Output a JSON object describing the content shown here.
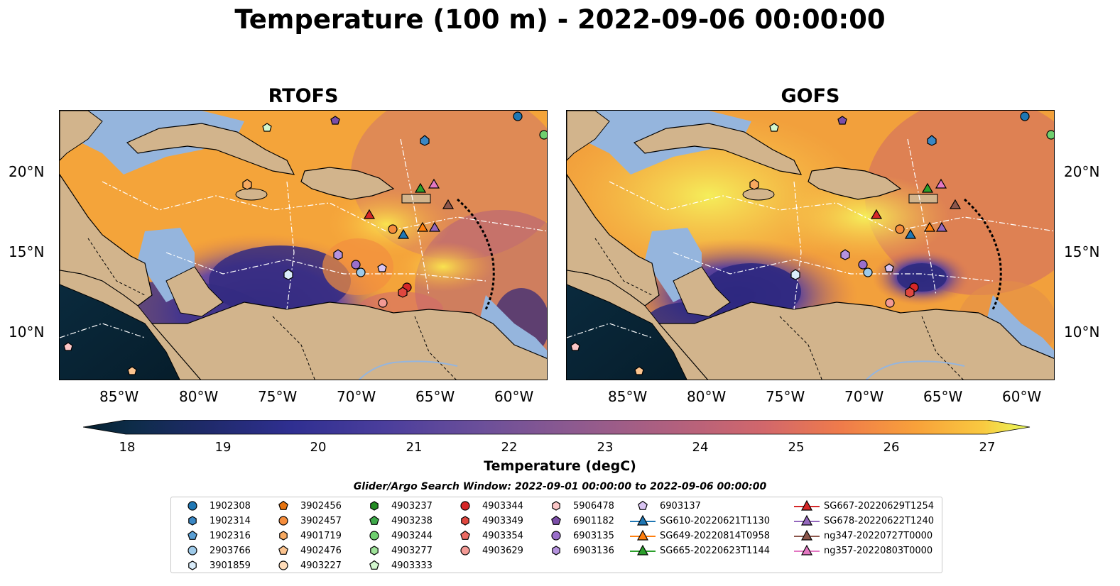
{
  "title": "Temperature (100 m) - 2022-09-06 00:00:00",
  "panels": [
    {
      "title": "RTOFS"
    },
    {
      "title": "GOFS"
    }
  ],
  "axes": {
    "lat_labels": [
      "20°N",
      "15°N",
      "10°N"
    ],
    "lon_labels": [
      "85°W",
      "80°W",
      "75°W",
      "70°W",
      "65°W",
      "60°W"
    ]
  },
  "colorbar": {
    "label": "Temperature (degC)",
    "ticks": [
      "18",
      "19",
      "20",
      "21",
      "22",
      "23",
      "24",
      "25",
      "26",
      "27"
    ],
    "range": [
      18,
      27
    ],
    "colormap": "thermal"
  },
  "colors": {
    "land": "#d2b48c",
    "shelf": "#95b5dd",
    "deep_dark": "#07273a"
  },
  "legend": {
    "title": "Glider/Argo Search Window: 2022-09-01 00:00:00 to 2022-09-06 00:00:00",
    "columns": [
      [
        {
          "label": "1902308",
          "marker": "circle",
          "color": "#1f77b4"
        },
        {
          "label": "1902314",
          "marker": "hexagon",
          "color": "#3a87c4"
        },
        {
          "label": "1902316",
          "marker": "pentagon",
          "color": "#5a9fd4"
        },
        {
          "label": "2903766",
          "marker": "circle",
          "color": "#9ecae9"
        },
        {
          "label": "3901859",
          "marker": "hexagon",
          "color": "#d9ecfa"
        }
      ],
      [
        {
          "label": "3902456",
          "marker": "pentagon",
          "color": "#e6730f"
        },
        {
          "label": "3902457",
          "marker": "circle",
          "color": "#f58d3c"
        },
        {
          "label": "4901719",
          "marker": "hexagon",
          "color": "#f7a960"
        },
        {
          "label": "4902476",
          "marker": "pentagon",
          "color": "#fcc48f"
        },
        {
          "label": "4903227",
          "marker": "circle",
          "color": "#ffdcb9"
        }
      ],
      [
        {
          "label": "4903237",
          "marker": "hexagon",
          "color": "#228b22"
        },
        {
          "label": "4903238",
          "marker": "pentagon",
          "color": "#3fa94a"
        },
        {
          "label": "4903244",
          "marker": "circle",
          "color": "#6fcf6f"
        },
        {
          "label": "4903277",
          "marker": "hexagon",
          "color": "#9fe39a"
        },
        {
          "label": "4903333",
          "marker": "pentagon",
          "color": "#d3f7cf"
        }
      ],
      [
        {
          "label": "4903344",
          "marker": "circle",
          "color": "#d62728"
        },
        {
          "label": "4903349",
          "marker": "hexagon",
          "color": "#e0473f"
        },
        {
          "label": "4903354",
          "marker": "pentagon",
          "color": "#ea6a63"
        },
        {
          "label": "4903629",
          "marker": "circle",
          "color": "#f39a95"
        }
      ],
      [
        {
          "label": "5906478",
          "marker": "hexagon",
          "color": "#fcc7c7"
        },
        {
          "label": "6901182",
          "marker": "pentagon",
          "color": "#7b4ea8"
        },
        {
          "label": "6903135",
          "marker": "circle",
          "color": "#9a6fcb"
        },
        {
          "label": "6903136",
          "marker": "hexagon",
          "color": "#b593de"
        }
      ],
      [
        {
          "label": "6903137",
          "marker": "pentagon",
          "color": "#d9c4f2"
        },
        {
          "label": "SG610-20220621T1130",
          "marker": "triangle",
          "color": "#1f77b4"
        },
        {
          "label": "SG649-20220814T0958",
          "marker": "triangle",
          "color": "#ff7f0e"
        },
        {
          "label": "SG665-20220623T1144",
          "marker": "triangle",
          "color": "#2ca02c"
        }
      ],
      [
        {
          "label": "SG667-20220629T1254",
          "marker": "triangle",
          "color": "#d62728"
        },
        {
          "label": "SG678-20220622T1240",
          "marker": "triangle",
          "color": "#9467bd"
        },
        {
          "label": "ng347-20220727T0000",
          "marker": "triangle",
          "color": "#8c564b"
        },
        {
          "label": "ng357-20220803T0000",
          "marker": "triangle",
          "color": "#e377c2"
        }
      ]
    ]
  }
}
